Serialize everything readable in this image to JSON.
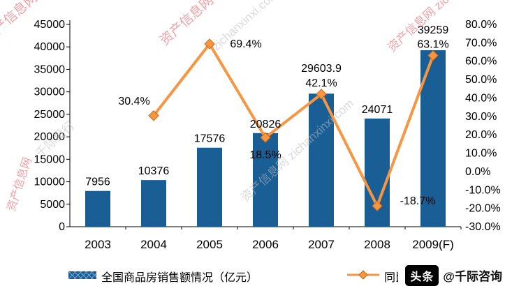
{
  "chart_data": {
    "type": "bar",
    "title": "",
    "grid": false,
    "categories": [
      "2003",
      "2004",
      "2005",
      "2006",
      "2007",
      "2008",
      "2009(F)"
    ],
    "series": [
      {
        "name": "全国商品房销售额情况（亿元）",
        "type": "bar",
        "axis": "left",
        "color": "#1A5E96",
        "values": [
          7956,
          10376,
          17576,
          20826,
          29603.9,
          24071,
          39259
        ],
        "labels": [
          "7956",
          "10376",
          "17576",
          "20826",
          "29603.9",
          "24071",
          "39259"
        ]
      },
      {
        "name": "同比增长率",
        "type": "line",
        "axis": "right",
        "color": "#F79642",
        "marker": "diamond",
        "values": [
          null,
          30.4,
          69.4,
          18.5,
          42.1,
          -18.7,
          63.1
        ],
        "labels": [
          null,
          "30.4%",
          "69.4%",
          "18.5%",
          "42.1%",
          "-18.7%",
          "63.1%"
        ]
      }
    ],
    "left_axis": {
      "min": 0,
      "max": 45000,
      "step": 5000,
      "tick_labels": [
        "45000",
        "40000",
        "35000",
        "30000",
        "25000",
        "20000",
        "15000",
        "10000",
        "5000",
        "0"
      ]
    },
    "right_axis": {
      "min": -30,
      "max": 80,
      "step": 10,
      "tick_labels": [
        "80.0%",
        "70.0%",
        "60.0%",
        "50.0%",
        "40.0%",
        "30.0%",
        "20.0%",
        "10.0%",
        "0.0%",
        "-10.0%",
        "-20.0%",
        "-30.0%"
      ]
    },
    "legend": {
      "position": "bottom",
      "items": [
        "全国商品房销售额情况（亿元）",
        "同比增长率"
      ]
    }
  },
  "watermarks": {
    "colors": {
      "red": "#E25560",
      "gray": "#BDBDBD"
    },
    "texts": {
      "site": "资产信息网",
      "url": "zichanxinxi.com",
      "combo": "资产信息网 zichanxinxi.com",
      "firm": "千际投行"
    }
  },
  "badge": {
    "label": "头条",
    "handle": "@千际咨询"
  }
}
